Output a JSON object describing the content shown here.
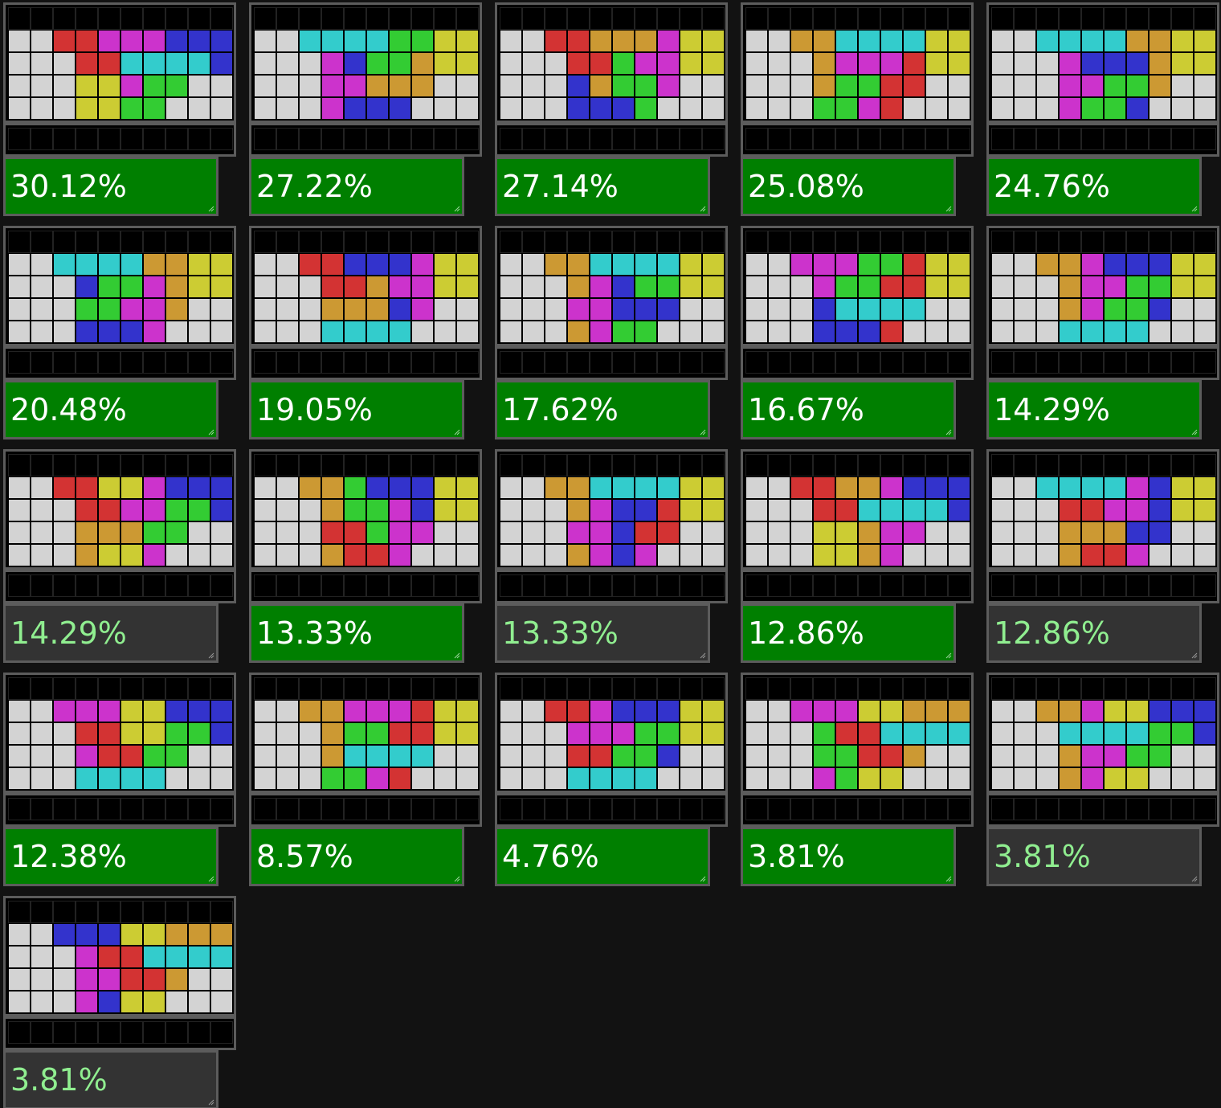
{
  "palette": {
    "W": "#d3d3d3",
    "R": "#d33333",
    "M": "#cc33cc",
    "B": "#3333cc",
    "C": "#33cccc",
    "G": "#33cc33",
    "Y": "#cccc33",
    "O": "#cc9933",
    "K": "#000000"
  },
  "colors": {
    "active_bg": "#007f00",
    "active_text": "#ffffff",
    "inactive_bg": "#333333",
    "inactive_text": "#90ee90",
    "border": "#5c5c5c",
    "page_bg": "#121212"
  },
  "cards": [
    {
      "percent": "30.12%",
      "active": true,
      "rows": [
        "KKKKKKKKKK",
        "WWRRMMMBBB",
        "WWWRRCCCCB",
        "WWWYYMGGWW",
        "WWWYYGGWWW"
      ]
    },
    {
      "percent": "27.22%",
      "active": true,
      "rows": [
        "KKKKKKKKKK",
        "WWCCCCGGYY",
        "WWWMBGGOYY",
        "WWWMMOOOWW",
        "WWWMBBBWWW"
      ]
    },
    {
      "percent": "27.14%",
      "active": true,
      "rows": [
        "KKKKKKKKKK",
        "WWRROOOMYY",
        "WWWRRGMMYY",
        "WWWBOGGMWW",
        "WWWBBBGWWW"
      ]
    },
    {
      "percent": "25.08%",
      "active": true,
      "rows": [
        "KKKKKKKKKK",
        "WWOOCCCCYY",
        "WWWOMMMRYY",
        "WWWOGGRRWW",
        "WWWGGMRWWW"
      ]
    },
    {
      "percent": "24.76%",
      "active": true,
      "rows": [
        "KKKKKKKKKK",
        "WWCCCCOOYY",
        "WWWMBBBOYY",
        "WWWMMGGOWW",
        "WWWMGGBWWW"
      ]
    },
    {
      "percent": "20.48%",
      "active": true,
      "rows": [
        "KKKKKKKKKK",
        "WWCCCCOOYY",
        "WWWBGGMOYY",
        "WWWGGMMOWW",
        "WWWBBBMWWW"
      ]
    },
    {
      "percent": "19.05%",
      "active": true,
      "rows": [
        "KKKKKKKKKK",
        "WWRRBBBMYY",
        "WWWRROMMYY",
        "WWWOOOBMWW",
        "WWWCCCCWWW"
      ]
    },
    {
      "percent": "17.62%",
      "active": true,
      "rows": [
        "KKKKKKKKKK",
        "WWOOCCCCYY",
        "WWWOMBGGYY",
        "WWWMMBBBWW",
        "WWWOMGGWWW"
      ]
    },
    {
      "percent": "16.67%",
      "active": true,
      "rows": [
        "KKKKKKKKKK",
        "WWMMMGGRYY",
        "WWWMGGRRYY",
        "WWWBCCCCWW",
        "WWWBBBRWWW"
      ]
    },
    {
      "percent": "14.29%",
      "active": true,
      "rows": [
        "KKKKKKKKKK",
        "WWOOMBBBYY",
        "WWWOMMGGYY",
        "WWWOMGGBWW",
        "WWWCCCCWWW"
      ]
    },
    {
      "percent": "14.29%",
      "active": false,
      "rows": [
        "KKKKKKKKKK",
        "WWRRYYMBBB",
        "WWWRRMMGGB",
        "WWWOOOGGWW",
        "WWWOYYMWWW"
      ]
    },
    {
      "percent": "13.33%",
      "active": true,
      "rows": [
        "KKKKKKKKKK",
        "WWOOGBBBYY",
        "WWWOGGMBYY",
        "WWWRRGMMWW",
        "WWWORRMWWW"
      ]
    },
    {
      "percent": "13.33%",
      "active": false,
      "rows": [
        "KKKKKKKKKK",
        "WWOOCCCCYY",
        "WWWOMBBRYY",
        "WWWMMBRRWW",
        "WWWOMBMWWW"
      ]
    },
    {
      "percent": "12.86%",
      "active": true,
      "rows": [
        "KKKKKKKKKK",
        "WWRROOMBBB",
        "WWWRRCCCCB",
        "WWWYYOMMWW",
        "WWWYYOMWWW"
      ]
    },
    {
      "percent": "12.86%",
      "active": false,
      "rows": [
        "KKKKKKKKKK",
        "WWCCCCMBYY",
        "WWWRRMMBYY",
        "WWWOOOBBWW",
        "WWWORRMWWW"
      ]
    },
    {
      "percent": "12.38%",
      "active": true,
      "rows": [
        "KKKKKKKKKK",
        "WWMMMYYBBB",
        "WWWRRYYGGB",
        "WWWMRRGGWW",
        "WWWCCCCWWW"
      ]
    },
    {
      "percent": "8.57%",
      "active": true,
      "rows": [
        "KKKKKKKKKK",
        "WWOOMMMRYY",
        "WWWOGGRRYY",
        "WWWOCCCCWW",
        "WWWGGMRWWW"
      ]
    },
    {
      "percent": "4.76%",
      "active": true,
      "rows": [
        "KKKKKKKKKK",
        "WWRRMBBBYY",
        "WWWMMMGGYY",
        "WWWRRGGBWW",
        "WWWCCCCWWW"
      ]
    },
    {
      "percent": "3.81%",
      "active": true,
      "rows": [
        "KKKKKKKKKK",
        "WWMMMYYOOO",
        "WWWGRRCCCC",
        "WWWGGRROWW",
        "WWWMGYYWWW"
      ]
    },
    {
      "percent": "3.81%",
      "active": false,
      "rows": [
        "KKKKKKKKKK",
        "WWOOMYYBBB",
        "WWWCCCCGGB",
        "WWWOMMGGWW",
        "WWWOMYYWWW"
      ]
    },
    {
      "percent": "3.81%",
      "active": false,
      "rows": [
        "KKKKKKKKKK",
        "WWBBBYYOOO",
        "WWWMRRCCCC",
        "WWWMMRROWW",
        "WWWMBYYWWW"
      ]
    }
  ]
}
